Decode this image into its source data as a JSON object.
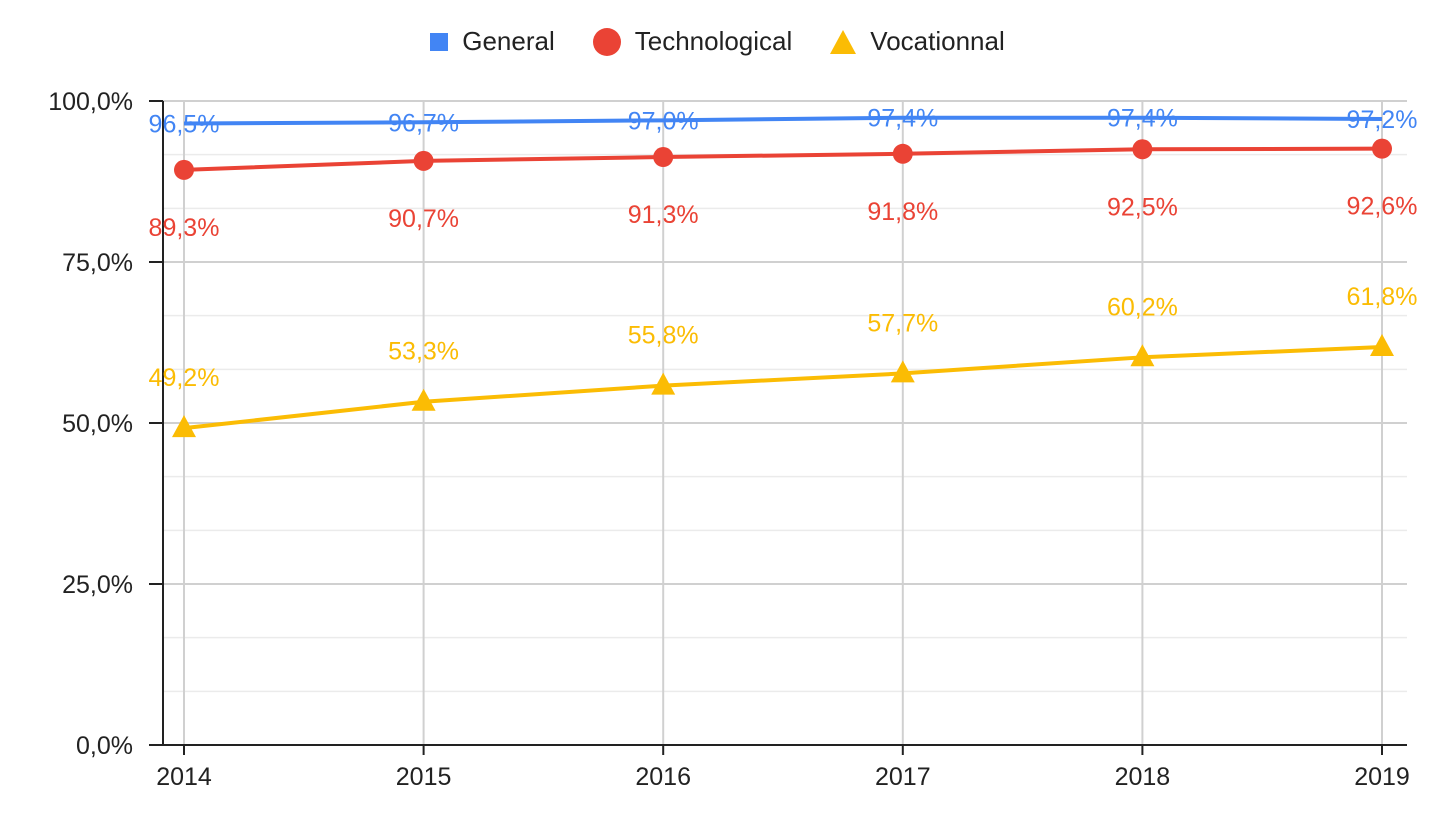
{
  "chart_data": {
    "type": "line",
    "categories": [
      "2014",
      "2015",
      "2016",
      "2017",
      "2018",
      "2019"
    ],
    "series": [
      {
        "name": "General",
        "values": [
          96.5,
          96.7,
          97.0,
          97.4,
          97.4,
          97.2
        ],
        "labels": [
          "96,5%",
          "96,7%",
          "97,0%",
          "97,4%",
          "97,4%",
          "97,2%"
        ],
        "color": "#4285f4",
        "marker": "square"
      },
      {
        "name": "Technological",
        "values": [
          89.3,
          90.7,
          91.3,
          91.8,
          92.5,
          92.6
        ],
        "labels": [
          "89,3%",
          "90,7%",
          "91,3%",
          "91,8%",
          "92,5%",
          "92,6%"
        ],
        "color": "#ea4335",
        "marker": "circle"
      },
      {
        "name": "Vocationnal",
        "values": [
          49.2,
          53.3,
          55.8,
          57.7,
          60.2,
          61.8
        ],
        "labels": [
          "49,2%",
          "53,3%",
          "55,8%",
          "57,7%",
          "60,2%",
          "61,8%"
        ],
        "color": "#fbbc04",
        "marker": "triangle"
      }
    ],
    "ylim": [
      0,
      100
    ],
    "yticks": [
      0,
      25,
      50,
      75,
      100
    ],
    "ytick_labels": [
      "0,0%",
      "25,0%",
      "50,0%",
      "75,0%",
      "100,0%"
    ],
    "grid": true,
    "legend_position": "top-center",
    "title": "",
    "xlabel": "",
    "ylabel": ""
  }
}
